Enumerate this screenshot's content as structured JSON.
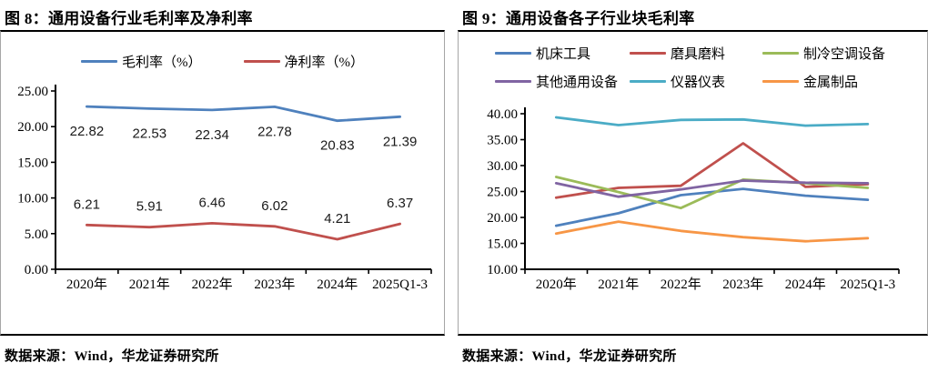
{
  "figures": [
    {
      "title": "图 8：通用设备行业毛利率及净利率",
      "source": "数据来源：Wind，华龙证券研究所"
    },
    {
      "title": "图 9：通用设备各子行业块毛利率",
      "source": "数据来源：Wind，华龙证券研究所"
    }
  ],
  "colors": {
    "blue": "#4F81BD",
    "red": "#C0504D",
    "green": "#9BBB59",
    "purple": "#8064A2",
    "cyan": "#4BACC6",
    "orange": "#F79646",
    "axis": "#000000",
    "box_border": "#a6a6a6"
  },
  "chart_data": [
    {
      "type": "line",
      "title": "图 8：通用设备行业毛利率及净利率",
      "categories": [
        "2020年",
        "2021年",
        "2022年",
        "2023年",
        "2024年",
        "2025Q1-3"
      ],
      "series": [
        {
          "name": "毛利率（%）",
          "color": "#4F81BD",
          "values": [
            22.82,
            22.53,
            22.34,
            22.78,
            20.83,
            21.39
          ],
          "data_labels": "below"
        },
        {
          "name": "净利率（%）",
          "color": "#C0504D",
          "values": [
            6.21,
            5.91,
            6.46,
            6.02,
            4.21,
            6.37
          ],
          "data_labels": "above"
        }
      ],
      "xlabel": "",
      "ylabel": "",
      "ylim": [
        0,
        25
      ],
      "ytick_step": 5,
      "ytick_decimals": 2,
      "grid": false,
      "legend_position": "top"
    },
    {
      "type": "line",
      "title": "图 9：通用设备各子行业块毛利率",
      "categories": [
        "2020年",
        "2021年",
        "2022年",
        "2023年",
        "2024年",
        "2025Q1-3"
      ],
      "series": [
        {
          "name": "机床工具",
          "color": "#4F81BD",
          "values": [
            18.4,
            20.8,
            24.3,
            25.5,
            24.2,
            23.4
          ]
        },
        {
          "name": "磨具磨料",
          "color": "#C0504D",
          "values": [
            23.8,
            25.7,
            26.1,
            34.3,
            25.9,
            26.4
          ]
        },
        {
          "name": "制冷空调设备",
          "color": "#9BBB59",
          "values": [
            27.8,
            24.9,
            21.8,
            27.3,
            26.6,
            25.7
          ]
        },
        {
          "name": "其他通用设备",
          "color": "#8064A2",
          "values": [
            26.6,
            24.0,
            25.4,
            27.1,
            26.7,
            26.6
          ]
        },
        {
          "name": "仪器仪表",
          "color": "#4BACC6",
          "values": [
            39.3,
            37.8,
            38.8,
            38.9,
            37.7,
            38.0
          ]
        },
        {
          "name": "金属制品",
          "color": "#F79646",
          "values": [
            16.9,
            19.2,
            17.4,
            16.2,
            15.4,
            16.0
          ]
        }
      ],
      "xlabel": "",
      "ylabel": "",
      "ylim": [
        10,
        40
      ],
      "ytick_step": 5,
      "ytick_decimals": 2,
      "grid": false,
      "legend_position": "top"
    }
  ]
}
